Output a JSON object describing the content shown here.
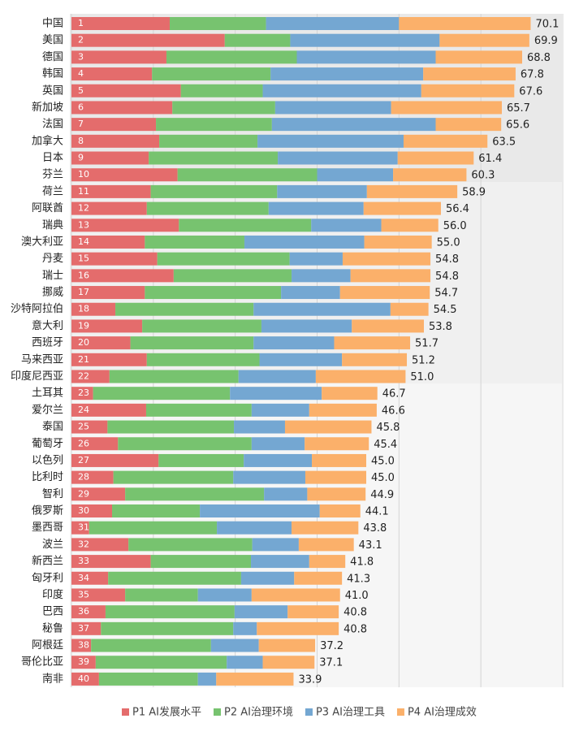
{
  "chart_data": {
    "type": "stacked-bar",
    "categories": [
      "中国",
      "美国",
      "德国",
      "韩国",
      "英国",
      "新加坡",
      "法国",
      "加拿大",
      "日本",
      "芬兰",
      "荷兰",
      "阿联酋",
      "瑞典",
      "澳大利亚",
      "丹麦",
      "瑞士",
      "挪威",
      "沙特阿拉伯",
      "意大利",
      "西班牙",
      "马来西亚",
      "印度尼西亚",
      "土耳其",
      "爱尔兰",
      "泰国",
      "葡萄牙",
      "以色列",
      "比利时",
      "智利",
      "俄罗斯",
      "墨西哥",
      "波兰",
      "新西兰",
      "匈牙利",
      "印度",
      "巴西",
      "秘鲁",
      "阿根廷",
      "哥伦比亚",
      "南非"
    ],
    "ranks": [
      "1",
      "2",
      "3",
      "4",
      "5",
      "6",
      "7",
      "8",
      "9",
      "10",
      "11",
      "12",
      "13",
      "14",
      "15",
      "16",
      "17",
      "18",
      "19",
      "20",
      "21",
      "22",
      "23",
      "24",
      "25",
      "26",
      "27",
      "28",
      "29",
      "30",
      "31",
      "32",
      "33",
      "34",
      "35",
      "36",
      "37",
      "38",
      "39",
      "40"
    ],
    "totals": [
      "70.1",
      "69.9",
      "68.8",
      "67.8",
      "67.6",
      "65.7",
      "65.6",
      "63.5",
      "61.4",
      "60.3",
      "58.9",
      "56.4",
      "56.0",
      "55.0",
      "54.8",
      "54.8",
      "54.7",
      "54.5",
      "53.8",
      "51.7",
      "51.2",
      "51.0",
      "46.7",
      "46.6",
      "45.8",
      "45.4",
      "45.0",
      "45.0",
      "44.9",
      "44.1",
      "43.8",
      "43.1",
      "41.8",
      "41.3",
      "41.0",
      "40.8",
      "40.8",
      "37.2",
      "37.1",
      "33.9"
    ],
    "series": [
      {
        "name": "P1 AI发展水平",
        "color": "#e46c6c",
        "values": [
          15.0,
          23.4,
          14.5,
          12.3,
          16.7,
          15.4,
          12.9,
          13.4,
          11.8,
          16.2,
          12.1,
          11.5,
          16.4,
          11.2,
          13.1,
          15.6,
          11.2,
          6.7,
          10.8,
          9.0,
          11.5,
          5.8,
          3.3,
          11.4,
          5.5,
          7.1,
          13.3,
          6.4,
          8.2,
          6.2,
          2.7,
          8.7,
          12.1,
          5.6,
          8.2,
          5.2,
          4.5,
          3.0,
          3.7,
          4.2
        ]
      },
      {
        "name": "P2 AI治理环境",
        "color": "#77c36f",
        "values": [
          14.7,
          10.0,
          19.9,
          18.1,
          12.5,
          15.7,
          17.7,
          15.0,
          19.7,
          21.3,
          19.3,
          18.6,
          20.2,
          15.2,
          20.2,
          18.0,
          20.8,
          21.1,
          18.2,
          18.8,
          17.2,
          19.7,
          20.9,
          16.1,
          19.3,
          20.4,
          13.0,
          18.3,
          21.2,
          13.4,
          19.5,
          18.9,
          15.3,
          20.3,
          11.1,
          19.7,
          20.2,
          18.3,
          20.0,
          15.1
        ]
      },
      {
        "name": "P3 AI治理工具",
        "color": "#74a7d2",
        "values": [
          20.3,
          22.8,
          21.2,
          23.3,
          24.2,
          17.7,
          25.0,
          22.3,
          18.3,
          11.6,
          13.7,
          14.5,
          10.7,
          18.3,
          8.1,
          9.0,
          9.0,
          20.9,
          13.8,
          12.3,
          12.6,
          11.8,
          14.0,
          8.8,
          7.8,
          8.1,
          10.4,
          11.0,
          6.6,
          18.3,
          11.4,
          7.1,
          8.9,
          8.1,
          8.2,
          8.1,
          3.6,
          7.3,
          5.5,
          2.8
        ]
      },
      {
        "name": "P4 AI治理成效",
        "color": "#fbb06a",
        "values": [
          20.1,
          13.7,
          13.2,
          14.1,
          14.2,
          16.9,
          10.0,
          12.8,
          11.6,
          11.2,
          13.8,
          11.8,
          8.7,
          10.3,
          13.4,
          12.2,
          13.7,
          5.8,
          11.0,
          11.6,
          9.9,
          13.7,
          8.5,
          10.3,
          13.2,
          9.8,
          8.3,
          9.3,
          8.9,
          6.2,
          10.2,
          8.4,
          5.5,
          7.3,
          13.5,
          7.8,
          12.5,
          8.6,
          7.9,
          11.8
        ]
      }
    ],
    "xlim": [
      0,
      75
    ],
    "xticks": [
      0,
      12.5,
      25,
      37.5,
      50,
      62.5,
      75
    ],
    "grid": true
  }
}
